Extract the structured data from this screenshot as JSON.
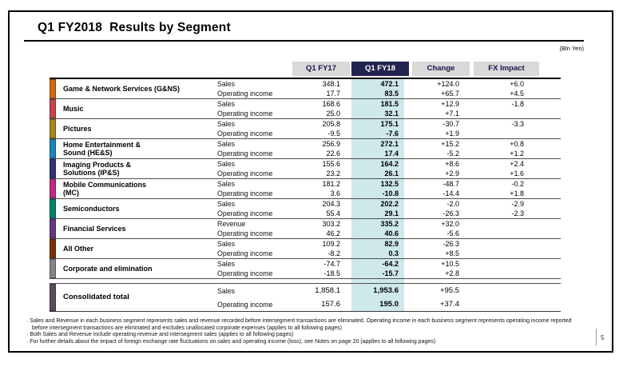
{
  "page": {
    "title": "Q1 FY2018  Results by Segment",
    "unit_note": "(Bln Yen)",
    "page_number": "5"
  },
  "colors": {
    "fy18_header_bg": "#232350",
    "fy18_band": "#cfe8ea",
    "header_gray": "#d9d9d9"
  },
  "table": {
    "columns": [
      "Q1 FY17",
      "Q1 FY18",
      "Change",
      "FX Impact"
    ],
    "segments": [
      {
        "name": "Game & Network Services (G&NS)",
        "color": "#d06a10",
        "rows": [
          {
            "label": "Sales",
            "fy17": "348.1",
            "fy18": "472.1",
            "change": "+124.0",
            "fx": "+6.0"
          },
          {
            "label": "Operating income",
            "fy17": "17.7",
            "fy18": "83.5",
            "change": "+65.7",
            "fx": "+4.5"
          }
        ]
      },
      {
        "name": "Music",
        "color": "#c74350",
        "rows": [
          {
            "label": "Sales",
            "fy17": "168.6",
            "fy18": "181.5",
            "change": "+12.9",
            "fx": "-1.8"
          },
          {
            "label": "Operating income",
            "fy17": "25.0",
            "fy18": "32.1",
            "change": "+7.1",
            "fx": ""
          }
        ]
      },
      {
        "name": "Pictures",
        "color": "#a98520",
        "rows": [
          {
            "label": "Sales",
            "fy17": "205.8",
            "fy18": "175.1",
            "change": "-30.7",
            "fx": "-3.3"
          },
          {
            "label": "Operating income",
            "fy17": "-9.5",
            "fy18": "-7.6",
            "change": "+1.9",
            "fx": ""
          }
        ]
      },
      {
        "name": "Home Entertainment &\nSound (HE&S)",
        "color": "#1d83bd",
        "rows": [
          {
            "label": "Sales",
            "fy17": "256.9",
            "fy18": "272.1",
            "change": "+15.2",
            "fx": "+0.8"
          },
          {
            "label": "Operating income",
            "fy17": "22.6",
            "fy18": "17.4",
            "change": "-5.2",
            "fx": "+1.2"
          }
        ]
      },
      {
        "name": "Imaging Products &\nSolutions (IP&S)",
        "color": "#30327a",
        "rows": [
          {
            "label": "Sales",
            "fy17": "155.6",
            "fy18": "164.2",
            "change": "+8.6",
            "fx": "+2.4"
          },
          {
            "label": "Operating income",
            "fy17": "23.2",
            "fy18": "26.1",
            "change": "+2.9",
            "fx": "+1.6"
          }
        ]
      },
      {
        "name": "Mobile Communications\n(MC)",
        "color": "#c02a80",
        "rows": [
          {
            "label": "Sales",
            "fy17": "181.2",
            "fy18": "132.5",
            "change": "-48.7",
            "fx": "-0.2"
          },
          {
            "label": "Operating income",
            "fy17": "3.6",
            "fy18": "-10.8",
            "change": "-14.4",
            "fx": "+1.8"
          }
        ]
      },
      {
        "name": "Semiconductors",
        "color": "#00816e",
        "rows": [
          {
            "label": "Sales",
            "fy17": "204.3",
            "fy18": "202.2",
            "change": "-2.0",
            "fx": "-2.9"
          },
          {
            "label": "Operating income",
            "fy17": "55.4",
            "fy18": "29.1",
            "change": "-26.3",
            "fx": "-2.3"
          }
        ]
      },
      {
        "name": "Financial Services",
        "color": "#613a87",
        "rows": [
          {
            "label": "Revenue",
            "fy17": "303.2",
            "fy18": "335.2",
            "change": "+32.0",
            "fx": ""
          },
          {
            "label": "Operating income",
            "fy17": "46.2",
            "fy18": "40.6",
            "change": "-5.6",
            "fx": ""
          }
        ]
      },
      {
        "name": "All Other",
        "color": "#7c3008",
        "rows": [
          {
            "label": "Sales",
            "fy17": "109.2",
            "fy18": "82.9",
            "change": "-26.3",
            "fx": ""
          },
          {
            "label": "Operating income",
            "fy17": "-8.2",
            "fy18": "0.3",
            "change": "+8.5",
            "fx": ""
          }
        ]
      },
      {
        "name": "Corporate and elimination",
        "color": "#858585",
        "rows": [
          {
            "label": "Sales",
            "fy17": "-74.7",
            "fy18": "-64.2",
            "change": "+10.5",
            "fx": ""
          },
          {
            "label": "Operating income",
            "fy17": "-18.5",
            "fy18": "-15.7",
            "change": "+2.8",
            "fx": ""
          }
        ]
      }
    ],
    "total": {
      "name": "Consolidated total",
      "color": "#5c4a5e",
      "rows": [
        {
          "label": "Sales",
          "fy17": "1,858.1",
          "fy18": "1,953.6",
          "change": "+95.5",
          "fx": ""
        },
        {
          "label": "Operating income",
          "fy17": "157.6",
          "fy18": "195.0",
          "change": "+37.4",
          "fx": ""
        }
      ]
    }
  },
  "footnotes": [
    "· Sales and Revenue in each business segment represents sales and revenue recorded before intersegment transactions are eliminated. Operating income in each business segment represents operating income reported before intersegment transactions are eliminated and excludes unallocated corporate expenses (applies to all following pages)",
    "· Both Sales and Revenue include operating revenue and intersegment sales (applies to all following pages)",
    "· For further details about the impact of foreign exchange rate fluctuations on sales and operating income (loss), see Notes on page 20 (applies to all following pages)"
  ]
}
